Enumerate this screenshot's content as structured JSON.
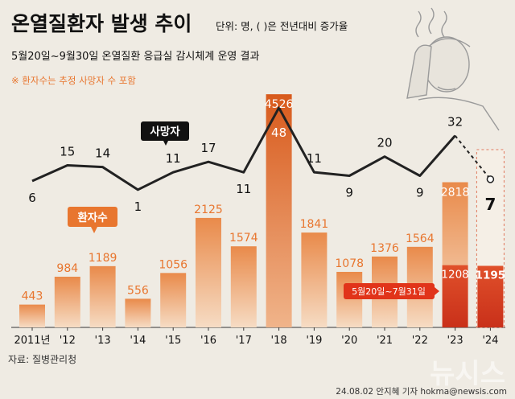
{
  "header": {
    "title": "온열질환자 발생 추이",
    "unit_note": "단위: 명, ( )은 전년대비 증가율",
    "subtitle": "5월20일~9월30일 온열질환 응급실 감시체계 운영 결과",
    "footnote": "※ 환자수는 추정 사망자 수 포함"
  },
  "labels": {
    "deaths": "사망자",
    "patients": "환자수",
    "period_2023_2024": "5월20일~7월31일"
  },
  "footer": {
    "source": "자료: 질병관리청",
    "credit": "24.08.02 안지혜 기자 hokma@newsis.com",
    "watermark": "뉴시스"
  },
  "colors": {
    "background": "#efebe3",
    "bar_gradient_top": "#e98a4a",
    "bar_gradient_bottom": "#f6dcc4",
    "bar_peak_top": "#d85a1c",
    "bar_partial": "#dd4a22",
    "line": "#222222",
    "label_patients": "#e8762f",
    "label_deaths": "#111111"
  },
  "chart_data": {
    "type": "bar",
    "categories": [
      "2011년",
      "'12",
      "'13",
      "'14",
      "'15",
      "'16",
      "'17",
      "'18",
      "'19",
      "'20",
      "'21",
      "'22",
      "'23",
      "'24"
    ],
    "series": [
      {
        "name": "환자수",
        "values": [
          443,
          984,
          1189,
          556,
          1056,
          2125,
          1574,
          4526,
          1841,
          1078,
          1376,
          1564,
          2818,
          null
        ],
        "partial_values": [
          null,
          null,
          null,
          null,
          null,
          null,
          null,
          null,
          null,
          null,
          null,
          null,
          1208,
          1195
        ],
        "partial_period": "5월20일~7월31일"
      },
      {
        "name": "사망자",
        "type": "line",
        "values": [
          6,
          15,
          14,
          1,
          11,
          17,
          11,
          48,
          11,
          9,
          20,
          9,
          32,
          7
        ],
        "dashed_last_segment": true
      }
    ],
    "ylim_patients": [
      0,
      4700
    ],
    "ylim_deaths": [
      0,
      50
    ],
    "grid": false,
    "legend": "inline labels"
  }
}
